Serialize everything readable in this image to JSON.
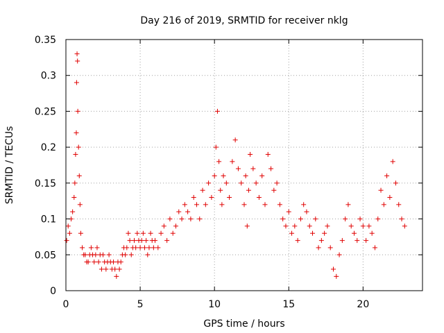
{
  "chart_data": {
    "type": "scatter",
    "title": "Day 216 of 2019, SRMTID for receiver nklg",
    "xlabel": "GPS time / hours",
    "ylabel": "SRMTID / TECUs",
    "xlim": [
      0,
      24
    ],
    "ylim": [
      0,
      0.35
    ],
    "x_ticks": [
      0,
      5,
      10,
      15,
      20
    ],
    "x_tick_labels": [
      "0",
      "5",
      "10",
      "15",
      "20"
    ],
    "y_ticks": [
      0,
      0.05,
      0.1,
      0.15,
      0.2,
      0.25,
      0.3,
      0.35
    ],
    "y_tick_labels": [
      "0",
      "0.05",
      "0.1",
      "0.15",
      "0.2",
      "0.25",
      "0.3",
      "0.35"
    ],
    "grid": true,
    "marker": "+",
    "color": "#e00000",
    "series": [
      {
        "name": "SRMTID",
        "x": [
          0.05,
          0.15,
          0.25,
          0.35,
          0.45,
          0.55,
          0.6,
          0.65,
          0.7,
          0.72,
          0.75,
          0.78,
          0.8,
          0.85,
          0.9,
          0.95,
          1.0,
          1.1,
          1.2,
          1.3,
          1.4,
          1.5,
          1.6,
          1.7,
          1.8,
          1.9,
          2.0,
          2.1,
          2.2,
          2.3,
          2.4,
          2.5,
          2.6,
          2.7,
          2.8,
          2.9,
          3.0,
          3.1,
          3.2,
          3.3,
          3.4,
          3.5,
          3.6,
          3.7,
          3.8,
          3.9,
          4.0,
          4.1,
          4.2,
          4.3,
          4.4,
          4.5,
          4.6,
          4.7,
          4.8,
          4.9,
          5.0,
          5.1,
          5.2,
          5.3,
          5.4,
          5.5,
          5.6,
          5.7,
          5.8,
          5.9,
          6.0,
          6.2,
          6.4,
          6.6,
          6.8,
          7.0,
          7.2,
          7.4,
          7.6,
          7.8,
          8.0,
          8.2,
          8.4,
          8.6,
          8.8,
          9.0,
          9.2,
          9.4,
          9.6,
          9.8,
          10.0,
          10.1,
          10.2,
          10.3,
          10.4,
          10.5,
          10.6,
          10.8,
          11.0,
          11.2,
          11.4,
          11.6,
          11.8,
          12.0,
          12.1,
          12.2,
          12.3,
          12.4,
          12.6,
          12.8,
          13.0,
          13.2,
          13.4,
          13.6,
          13.8,
          14.0,
          14.2,
          14.4,
          14.6,
          14.8,
          15.0,
          15.2,
          15.4,
          15.6,
          15.8,
          16.0,
          16.2,
          16.4,
          16.6,
          16.8,
          17.0,
          17.2,
          17.4,
          17.6,
          17.8,
          18.0,
          18.2,
          18.4,
          18.6,
          18.8,
          19.0,
          19.2,
          19.4,
          19.6,
          19.8,
          20.0,
          20.2,
          20.4,
          20.6,
          20.8,
          21.0,
          21.2,
          21.4,
          21.6,
          21.8,
          22.0,
          22.2,
          22.4,
          22.6,
          22.8
        ],
        "y": [
          0.07,
          0.09,
          0.08,
          0.1,
          0.11,
          0.13,
          0.15,
          0.19,
          0.22,
          0.29,
          0.33,
          0.32,
          0.25,
          0.2,
          0.16,
          0.12,
          0.08,
          0.06,
          0.05,
          0.05,
          0.04,
          0.04,
          0.05,
          0.06,
          0.05,
          0.04,
          0.05,
          0.06,
          0.04,
          0.05,
          0.03,
          0.05,
          0.04,
          0.03,
          0.04,
          0.05,
          0.04,
          0.03,
          0.04,
          0.03,
          0.02,
          0.04,
          0.03,
          0.04,
          0.05,
          0.06,
          0.05,
          0.06,
          0.08,
          0.07,
          0.05,
          0.06,
          0.07,
          0.06,
          0.08,
          0.07,
          0.06,
          0.07,
          0.08,
          0.06,
          0.07,
          0.05,
          0.06,
          0.08,
          0.07,
          0.06,
          0.07,
          0.06,
          0.08,
          0.09,
          0.07,
          0.1,
          0.08,
          0.09,
          0.11,
          0.1,
          0.12,
          0.11,
          0.1,
          0.13,
          0.12,
          0.1,
          0.14,
          0.12,
          0.15,
          0.13,
          0.16,
          0.2,
          0.25,
          0.18,
          0.14,
          0.12,
          0.16,
          0.15,
          0.13,
          0.18,
          0.21,
          0.17,
          0.15,
          0.12,
          0.16,
          0.09,
          0.14,
          0.19,
          0.17,
          0.15,
          0.13,
          0.16,
          0.12,
          0.19,
          0.17,
          0.14,
          0.15,
          0.12,
          0.1,
          0.09,
          0.11,
          0.08,
          0.09,
          0.07,
          0.1,
          0.12,
          0.11,
          0.09,
          0.08,
          0.1,
          0.06,
          0.07,
          0.08,
          0.09,
          0.06,
          0.03,
          0.02,
          0.05,
          0.07,
          0.1,
          0.12,
          0.09,
          0.08,
          0.07,
          0.1,
          0.09,
          0.07,
          0.09,
          0.08,
          0.06,
          0.1,
          0.14,
          0.12,
          0.16,
          0.13,
          0.18,
          0.15,
          0.12,
          0.1,
          0.09
        ]
      }
    ]
  }
}
